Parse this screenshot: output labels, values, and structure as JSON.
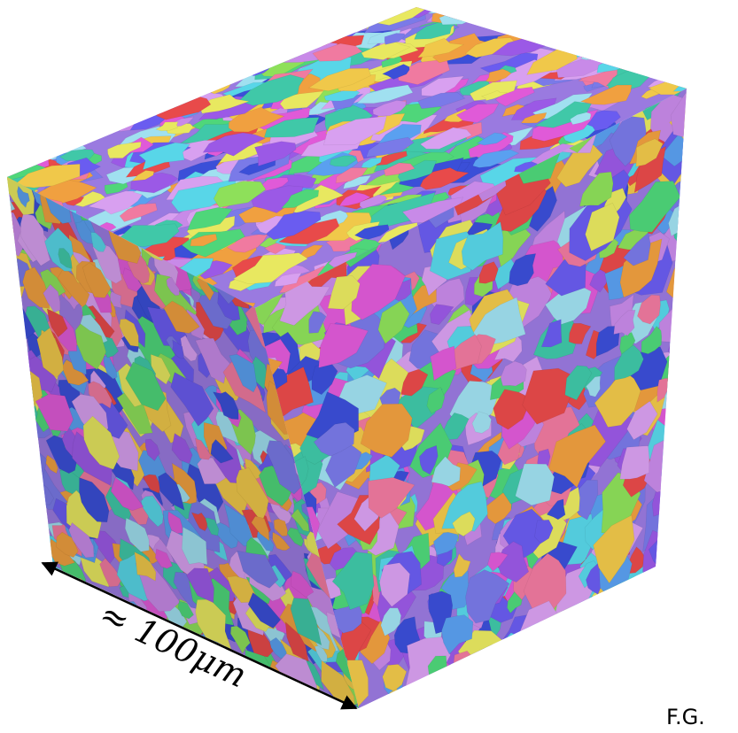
{
  "annotations": {
    "scale_label": "≈ 100μm",
    "corner_label": "F.G."
  }
}
